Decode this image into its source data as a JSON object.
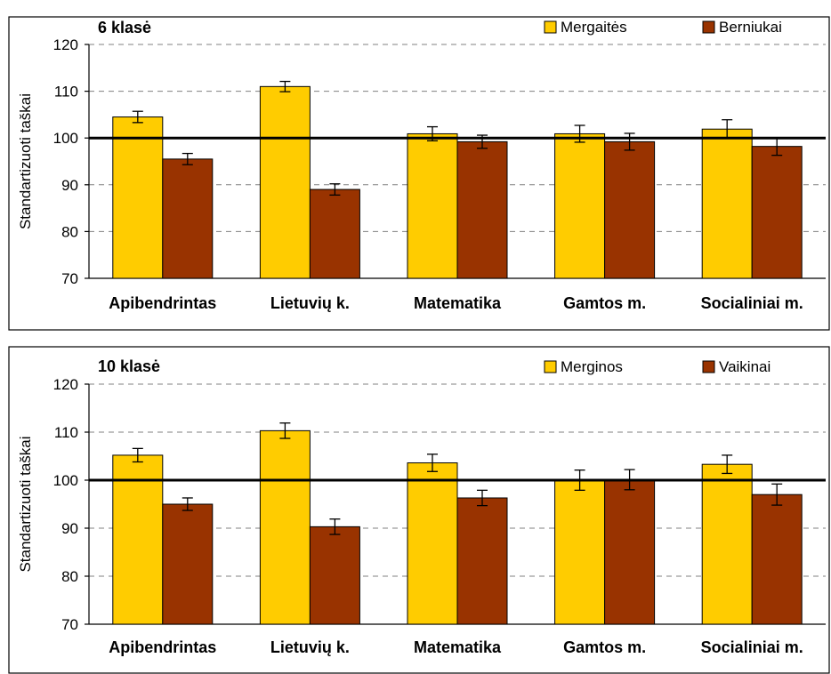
{
  "chart_data": [
    {
      "type": "bar",
      "title": "6 klasė",
      "ylabel": "Standartizuoti taškai",
      "xlabel": "",
      "ylim": [
        70,
        120
      ],
      "yticks": [
        70,
        80,
        90,
        100,
        110,
        120
      ],
      "reference_line": 100,
      "grid": true,
      "legend": "top-right",
      "categories": [
        "Apibendrintas",
        "Lietuvių k.",
        "Matematika",
        "Gamtos m.",
        "Socialiniai m."
      ],
      "series": [
        {
          "name": "Mergaitės",
          "color": "#FFCC00",
          "values": [
            104.5,
            111.0,
            100.9,
            100.9,
            101.9
          ],
          "errors": [
            1.2,
            1.1,
            1.5,
            1.8,
            2.0
          ]
        },
        {
          "name": "Berniukai",
          "color": "#993300",
          "values": [
            95.5,
            89.0,
            99.2,
            99.2,
            98.2
          ],
          "errors": [
            1.2,
            1.2,
            1.4,
            1.8,
            1.9
          ]
        }
      ]
    },
    {
      "type": "bar",
      "title": "10 klasė",
      "ylabel": "Standartizuoti taškai",
      "xlabel": "",
      "ylim": [
        70,
        120
      ],
      "yticks": [
        70,
        80,
        90,
        100,
        110,
        120
      ],
      "reference_line": 100,
      "grid": true,
      "legend": "top-right",
      "categories": [
        "Apibendrintas",
        "Lietuvių k.",
        "Matematika",
        "Gamtos m.",
        "Socialiniai m."
      ],
      "series": [
        {
          "name": "Merginos",
          "color": "#FFCC00",
          "values": [
            105.2,
            110.3,
            103.6,
            100.0,
            103.3
          ],
          "errors": [
            1.4,
            1.6,
            1.8,
            2.1,
            1.9
          ]
        },
        {
          "name": "Vaikinai",
          "color": "#993300",
          "values": [
            95.0,
            90.3,
            96.3,
            100.1,
            97.0
          ],
          "errors": [
            1.3,
            1.6,
            1.6,
            2.1,
            2.2
          ]
        }
      ]
    }
  ]
}
